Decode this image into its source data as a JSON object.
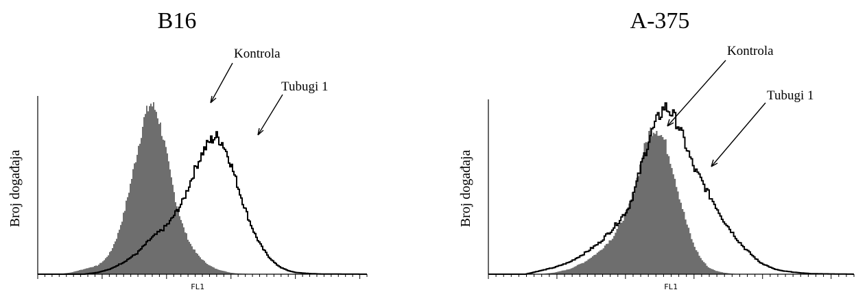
{
  "chart_data": [
    {
      "type": "area",
      "title": "B16",
      "xlabel": "FL1",
      "ylabel": "Broj događaja",
      "x_scale": "log",
      "x_ticks_labeled": false,
      "y_ticks_labeled": false,
      "grid": false,
      "annotations": [
        "Kontrola",
        "Tubugi 1"
      ],
      "series": [
        {
          "name": "Kontrola",
          "style": "filled",
          "color": "#6e6e6e",
          "x": [
            0.0,
            0.06,
            0.1,
            0.14,
            0.18,
            0.2,
            0.22,
            0.24,
            0.26,
            0.28,
            0.3,
            0.32,
            0.34,
            0.36,
            0.38,
            0.4,
            0.42,
            0.44,
            0.46,
            0.48,
            0.5,
            0.52,
            0.54,
            0.56,
            0.58,
            0.6,
            0.62,
            0.64,
            0.66,
            0.7,
            0.74,
            1.0
          ],
          "y": [
            0.0,
            0.0,
            0.01,
            0.03,
            0.05,
            0.08,
            0.13,
            0.22,
            0.35,
            0.52,
            0.7,
            0.88,
            0.98,
            0.93,
            0.78,
            0.58,
            0.4,
            0.27,
            0.18,
            0.12,
            0.08,
            0.05,
            0.03,
            0.02,
            0.01,
            0.005,
            0.003,
            0.002,
            0.001,
            0.0,
            0.0,
            0.0
          ]
        },
        {
          "name": "Tubugi 1",
          "style": "outline",
          "color": "#000000",
          "x": [
            0.0,
            0.14,
            0.18,
            0.22,
            0.26,
            0.3,
            0.34,
            0.38,
            0.4,
            0.42,
            0.44,
            0.46,
            0.48,
            0.5,
            0.52,
            0.54,
            0.56,
            0.58,
            0.6,
            0.62,
            0.64,
            0.66,
            0.68,
            0.7,
            0.72,
            0.74,
            0.76,
            0.78,
            0.82,
            0.86,
            1.0
          ],
          "y": [
            0.0,
            0.0,
            0.01,
            0.03,
            0.07,
            0.12,
            0.2,
            0.26,
            0.3,
            0.36,
            0.42,
            0.52,
            0.62,
            0.7,
            0.76,
            0.79,
            0.75,
            0.66,
            0.54,
            0.42,
            0.31,
            0.22,
            0.15,
            0.1,
            0.06,
            0.035,
            0.02,
            0.01,
            0.004,
            0.001,
            0.0
          ]
        }
      ]
    },
    {
      "type": "area",
      "title": "A-375",
      "xlabel": "FL1",
      "ylabel": "Broj događaja",
      "x_scale": "log",
      "x_ticks_labeled": false,
      "y_ticks_labeled": false,
      "grid": false,
      "annotations": [
        "Kontrola",
        "Tubugi 1"
      ],
      "series": [
        {
          "name": "Kontrola",
          "style": "filled",
          "color": "#6e6e6e",
          "x": [
            0.0,
            0.14,
            0.18,
            0.22,
            0.26,
            0.3,
            0.34,
            0.38,
            0.4,
            0.42,
            0.44,
            0.46,
            0.48,
            0.5,
            0.52,
            0.54,
            0.56,
            0.58,
            0.6,
            0.62,
            0.64,
            0.66,
            0.68,
            0.72,
            1.0
          ],
          "y": [
            0.0,
            0.0,
            0.01,
            0.03,
            0.07,
            0.13,
            0.22,
            0.38,
            0.52,
            0.7,
            0.84,
            0.85,
            0.78,
            0.64,
            0.46,
            0.3,
            0.17,
            0.09,
            0.04,
            0.02,
            0.01,
            0.004,
            0.001,
            0.0,
            0.0
          ]
        },
        {
          "name": "Tubugi 1",
          "style": "outline",
          "color": "#000000",
          "x": [
            0.0,
            0.1,
            0.14,
            0.18,
            0.22,
            0.26,
            0.3,
            0.34,
            0.38,
            0.4,
            0.42,
            0.44,
            0.46,
            0.48,
            0.5,
            0.52,
            0.54,
            0.56,
            0.58,
            0.6,
            0.62,
            0.64,
            0.66,
            0.68,
            0.7,
            0.72,
            0.74,
            0.76,
            0.78,
            0.8,
            0.84,
            0.88,
            1.0
          ],
          "y": [
            0.0,
            0.0,
            0.02,
            0.04,
            0.07,
            0.12,
            0.18,
            0.27,
            0.38,
            0.5,
            0.66,
            0.8,
            0.9,
            0.98,
            0.94,
            0.86,
            0.74,
            0.62,
            0.55,
            0.47,
            0.4,
            0.32,
            0.26,
            0.2,
            0.15,
            0.11,
            0.07,
            0.05,
            0.03,
            0.02,
            0.01,
            0.003,
            0.0
          ]
        }
      ]
    }
  ]
}
